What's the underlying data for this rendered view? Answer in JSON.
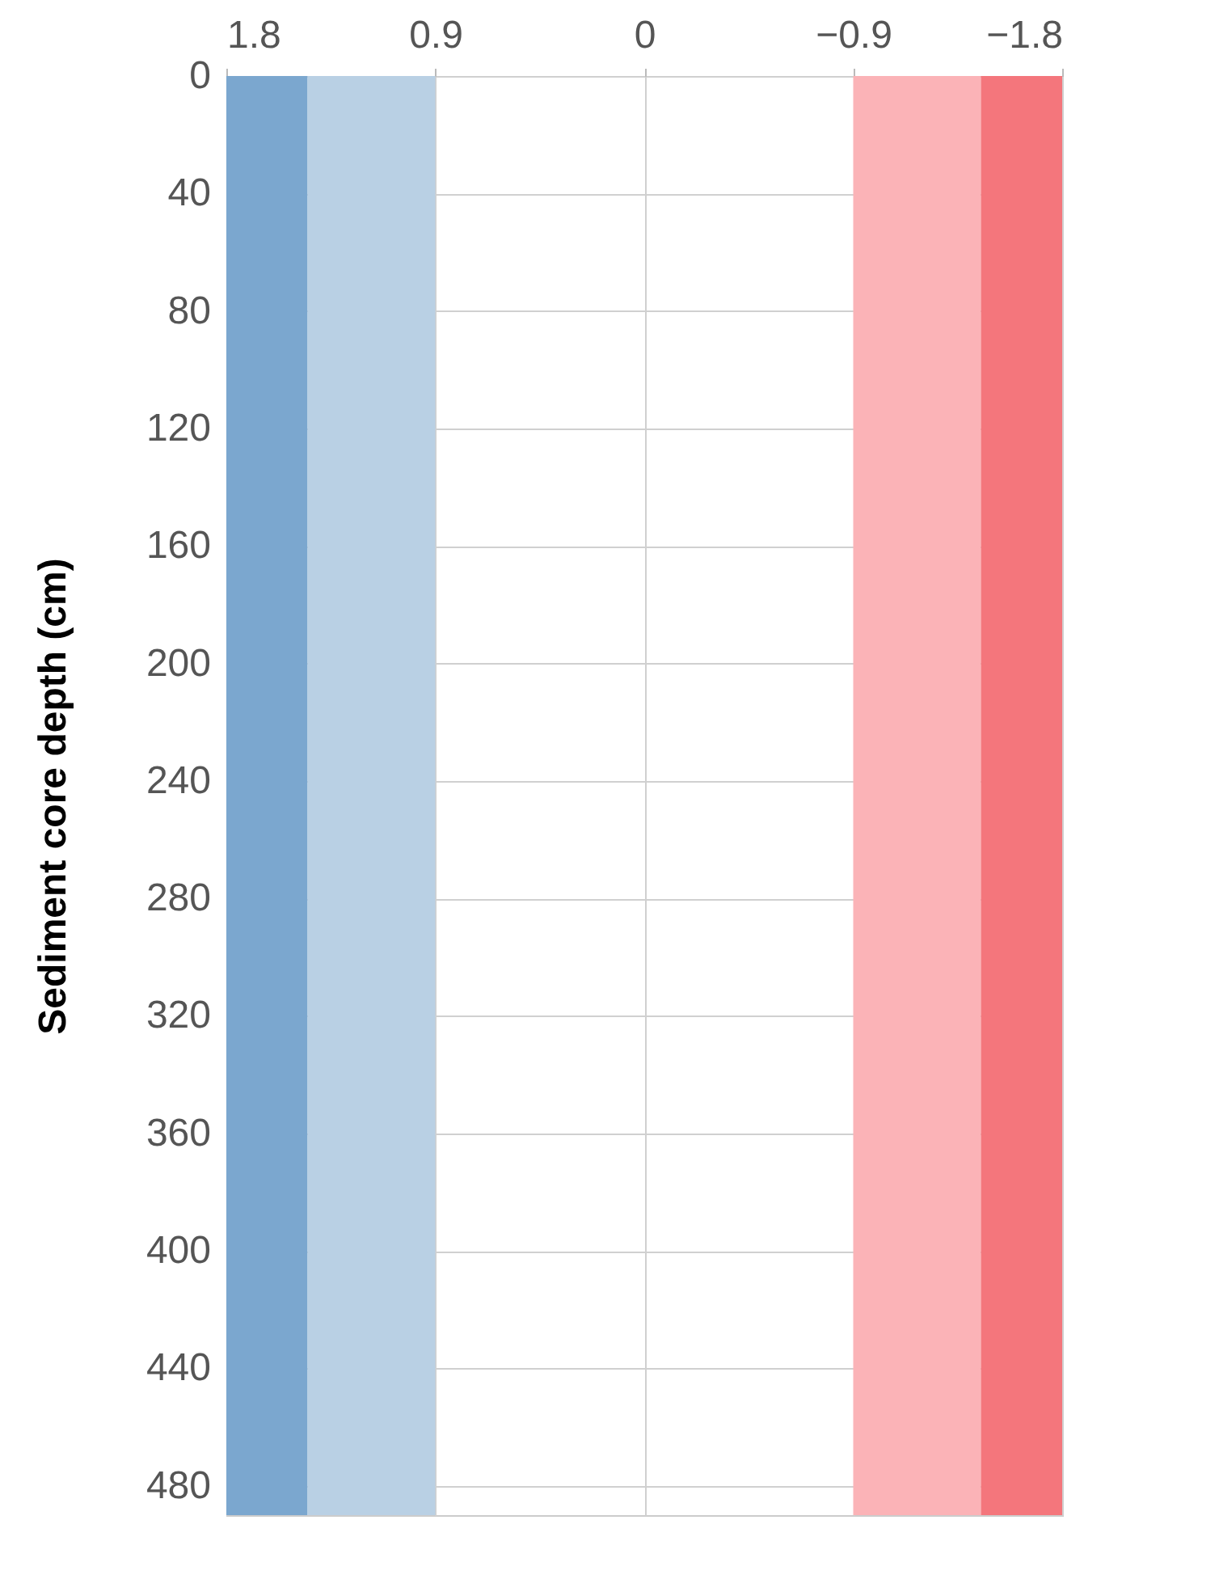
{
  "chart_data": {
    "type": "line",
    "ylabel": "Sediment core depth (cm)",
    "xlim": [
      1.8,
      -1.8
    ],
    "xticks": [
      1.8,
      0.9,
      0,
      -0.9,
      -1.8
    ],
    "ylim": [
      490,
      0
    ],
    "yticks": [
      0,
      40,
      80,
      120,
      160,
      200,
      240,
      280,
      320,
      360,
      400,
      440,
      480
    ],
    "grid": true,
    "bands": [
      {
        "axis": "x",
        "from": 1.8,
        "to": 1.45,
        "color": "#7ba7cf"
      },
      {
        "axis": "x",
        "from": 1.45,
        "to": 0.9,
        "color": "#b9d0e4"
      },
      {
        "axis": "x",
        "from": -0.9,
        "to": -1.45,
        "color": "#fbb3b7"
      },
      {
        "axis": "x",
        "from": -1.45,
        "to": -1.8,
        "color": "#f4767c"
      }
    ]
  }
}
